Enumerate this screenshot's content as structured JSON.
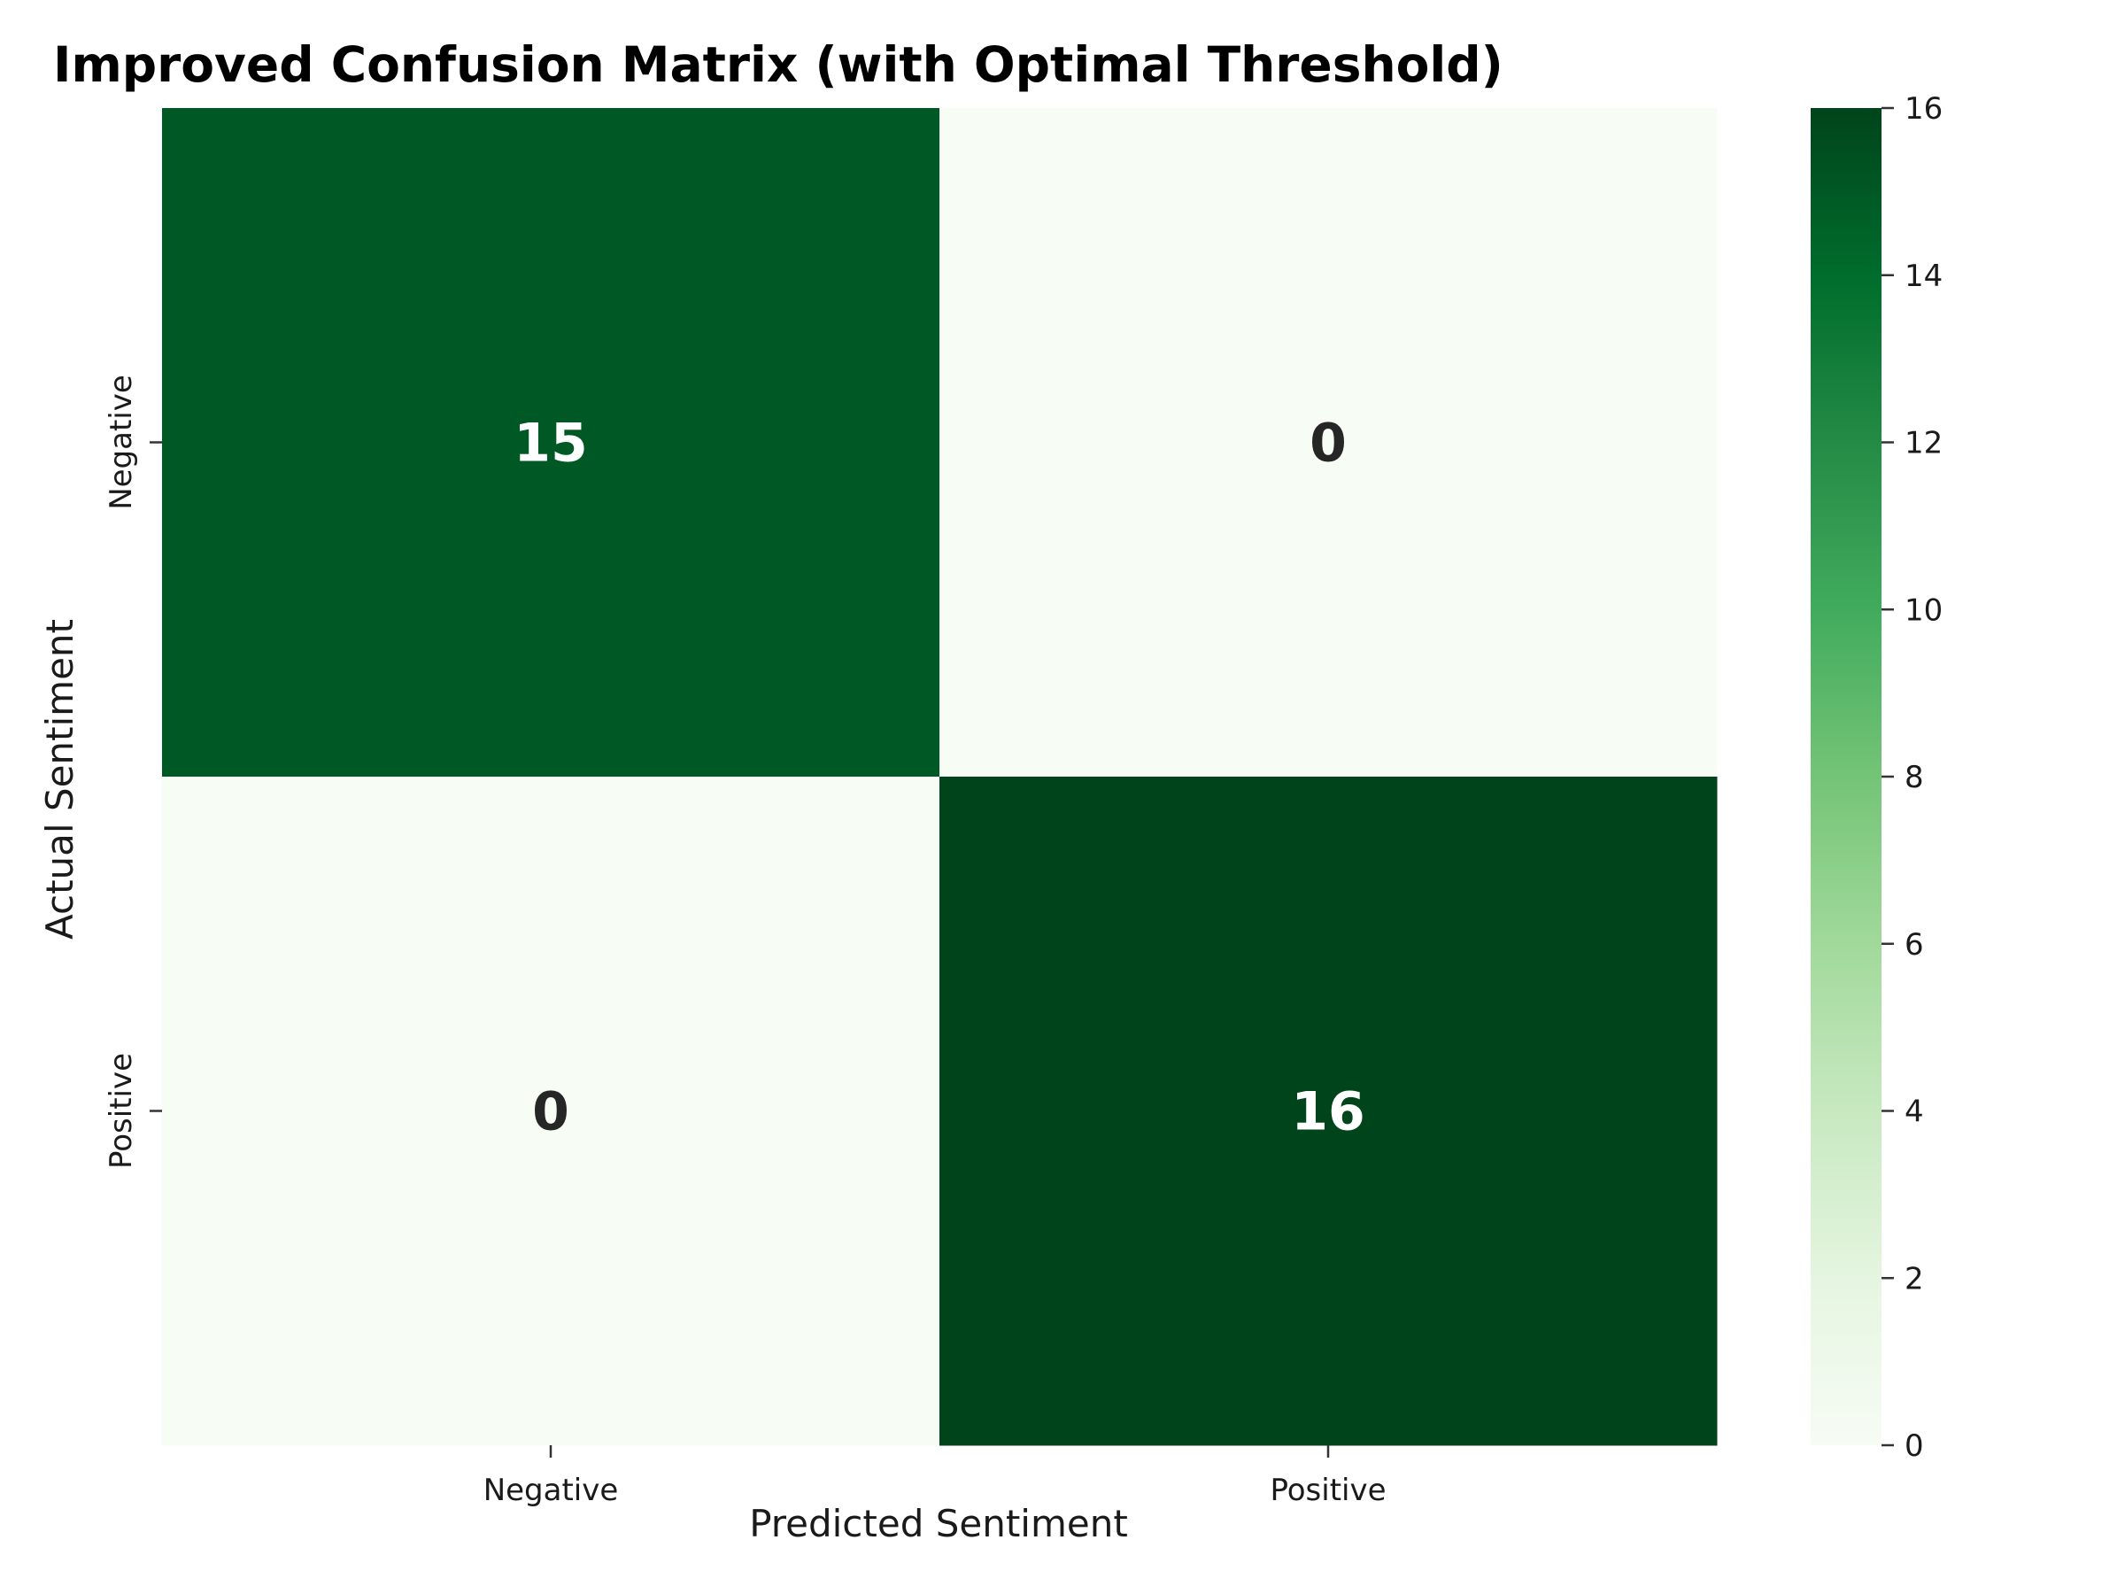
{
  "chart_data": {
    "type": "heatmap",
    "title": "Improved Confusion Matrix (with Optimal Threshold)",
    "xlabel": "Predicted Sentiment",
    "ylabel": "Actual Sentiment",
    "x_categories": [
      "Negative",
      "Positive"
    ],
    "y_categories": [
      "Negative",
      "Positive"
    ],
    "values": [
      [
        15,
        0
      ],
      [
        0,
        16
      ]
    ],
    "colormap": "Greens",
    "color_range": [
      0,
      16
    ],
    "colorbar_ticks": [
      "0",
      "2",
      "4",
      "6",
      "8",
      "10",
      "12",
      "14",
      "16"
    ],
    "annotations": true
  }
}
